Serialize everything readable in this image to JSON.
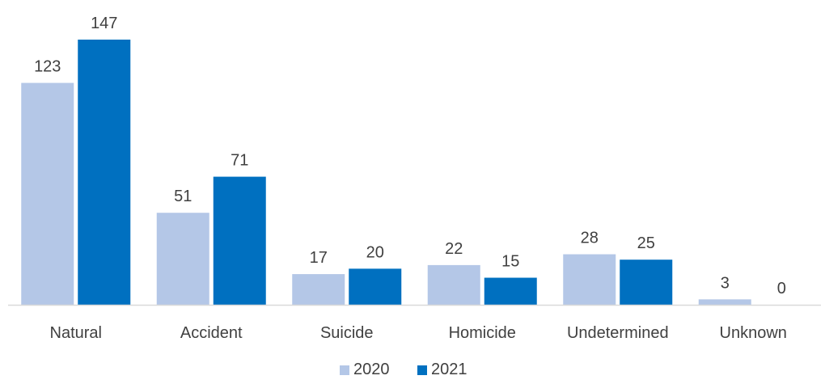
{
  "chart_data": {
    "type": "bar",
    "title": "",
    "xlabel": "",
    "ylabel": "",
    "categories": [
      "Natural",
      "Accident",
      "Suicide",
      "Homicide",
      "Undetermined",
      "Unknown"
    ],
    "series": [
      {
        "name": "2020",
        "values": [
          123,
          51,
          17,
          22,
          28,
          3
        ],
        "color": "#B4C7E7"
      },
      {
        "name": "2021",
        "values": [
          147,
          71,
          20,
          15,
          25,
          0
        ],
        "color": "#0070C0"
      }
    ],
    "ylim": [
      0,
      147
    ],
    "grid": false,
    "data_labels": true,
    "legend_position": "bottom",
    "axis_color": "#D9D9D9"
  }
}
